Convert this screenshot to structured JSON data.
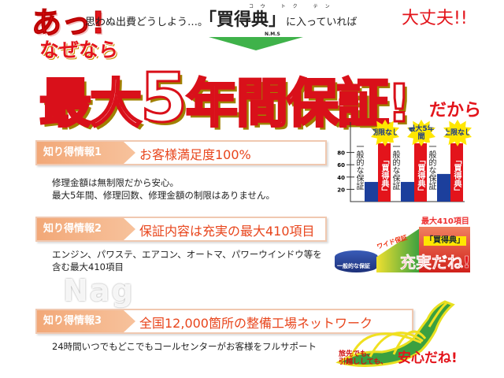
{
  "header": {
    "exclaim": "あっ!",
    "lead": "思わぬ出費どうしよう…。",
    "brand": "「買得典」",
    "brand_ruby": "コウ トク テン",
    "brand_sub": "N.M.S",
    "tail": "に入っていれば",
    "ok": "大丈夫!!"
  },
  "hero": {
    "naze": "なぜなら",
    "pre": "最大",
    "num": "5",
    "post": "年間保証!",
    "dakara": "だから"
  },
  "sections": [
    {
      "label": "知り得情報1",
      "title": "お客様満足度100%",
      "lines": [
        "修理金額は無制限だから安心。",
        "最大5年間、修理回数、修理金額の制限はありません。"
      ]
    },
    {
      "label": "知り得情報2",
      "title": "保証内容は充実の最大410項目",
      "lines": [
        "エンジン、パワステ、エアコン、オートマ、パワーウインドウ等を",
        "含む最大410項目"
      ]
    },
    {
      "label": "知り得情報3",
      "title": "全国12,000箇所の整備工場ネットワーク",
      "lines": [
        "24時間いつでもどこでもコールセンターがお客様をフルサポート"
      ]
    }
  ],
  "watermark": "Nag",
  "chart_data": {
    "type": "bar",
    "yticks": [
      20,
      40,
      60,
      80
    ],
    "ylim": [
      0,
      100
    ],
    "groups": [
      {
        "general_label": "一般的な保証",
        "general": 32,
        "brand_label": "「買得典」",
        "brand": 95,
        "badge": "期限なし"
      },
      {
        "general_label": "一般的な保証",
        "general": 32,
        "brand_label": "「買得典」",
        "brand": 95,
        "badge": "最大5年間"
      },
      {
        "general_label": "一般的な保証",
        "general": 45,
        "brand_label": "「買得典」",
        "brand": 95,
        "badge": "上限なし"
      }
    ],
    "colors": {
      "general": "#1c3f9c",
      "brand": "#e3141b"
    }
  },
  "graphic2": {
    "general": "一般的な保証",
    "wide": "ワイド保証",
    "max": "最大410項目",
    "brand": "「買得典」",
    "slogan": "充実だね!"
  },
  "graphic3": {
    "line1": "旅先でも、",
    "line2": "引越ししても、",
    "slogan": "安心だね!"
  }
}
